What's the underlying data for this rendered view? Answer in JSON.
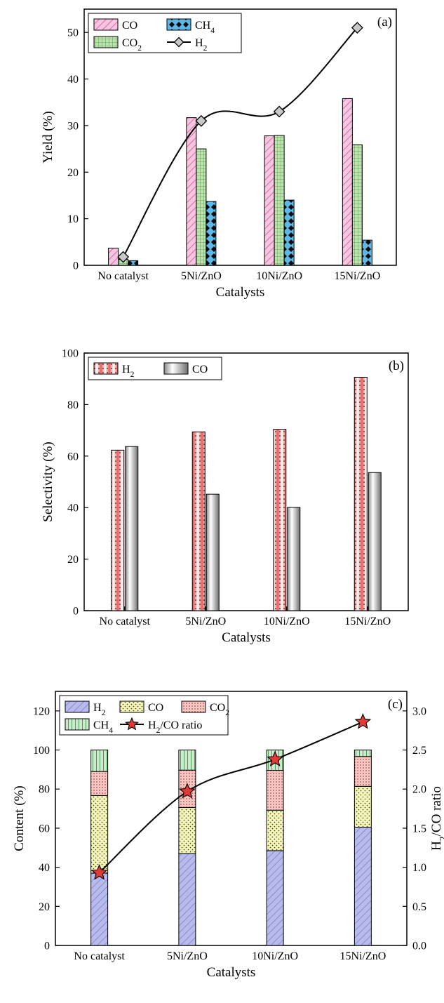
{
  "chart_data": [
    {
      "type": "bar",
      "panel_label": "(a)",
      "categories": [
        "No catalyst",
        "5Ni/ZnO",
        "10Ni/ZnO",
        "15Ni/ZnO"
      ],
      "xlabel": "Catalysts",
      "ylabel": "Yield (%)",
      "ylim": [
        0,
        55
      ],
      "yticks": [
        0,
        10,
        20,
        30,
        40,
        50
      ],
      "legend_position": "top-left",
      "series": [
        {
          "name": "CO",
          "sub": "",
          "values": [
            3.7,
            31.7,
            27.8,
            35.8
          ],
          "color": "#f2b8d8",
          "pattern": "hatch-pink"
        },
        {
          "name": "CO",
          "sub": "2",
          "values": [
            1.3,
            25.0,
            27.9,
            25.9
          ],
          "color": "#b7dfa9",
          "pattern": "grid-green"
        },
        {
          "name": "CH",
          "sub": "4",
          "values": [
            1.0,
            13.7,
            14.0,
            5.4
          ],
          "color": "#5fb7e6",
          "pattern": "diamond-blue"
        },
        {
          "name": "H",
          "sub": "2",
          "values": [
            1.8,
            31.0,
            33.0,
            51.0
          ],
          "kind": "line",
          "marker": "diamond",
          "color": "#c8c8c8"
        }
      ]
    },
    {
      "type": "bar",
      "panel_label": "(b)",
      "categories": [
        "No catalyst",
        "5Ni/ZnO",
        "10Ni/ZnO",
        "15Ni/ZnO"
      ],
      "xlabel": "Catalysts",
      "ylabel": "Selectivity (%)",
      "ylim": [
        0,
        100
      ],
      "yticks": [
        0,
        20,
        40,
        60,
        80,
        100
      ],
      "legend_position": "top-left",
      "series": [
        {
          "name": "H",
          "sub": "2",
          "values": [
            62.3,
            69.4,
            70.4,
            90.6
          ],
          "color": "#f4a0a0",
          "pattern": "red-dots"
        },
        {
          "name": "CO",
          "sub": "",
          "values": [
            63.7,
            45.2,
            40.1,
            53.6
          ],
          "color": "#bdbdbd",
          "pattern": "gray-gradient"
        }
      ]
    },
    {
      "type": "bar",
      "stacked": true,
      "panel_label": "(c)",
      "categories": [
        "No catalyst",
        "5Ni/ZnO",
        "10Ni/ZnO",
        "15Ni/ZnO"
      ],
      "xlabel": "Catalysts",
      "ylabel": "Content (%)",
      "ylabel_right": {
        "pre": "H",
        "sub": "2",
        "post": "/CO ratio"
      },
      "ylim": [
        0,
        130
      ],
      "yticks": [
        0,
        20,
        40,
        60,
        80,
        100,
        120
      ],
      "ylim_right": [
        0,
        3.25
      ],
      "yticks_right": [
        "0.0",
        "0.5",
        "1.0",
        "1.5",
        "2.0",
        "2.5",
        "3.0"
      ],
      "legend_position": "top-left",
      "series": [
        {
          "name": "H",
          "sub": "2",
          "values": [
            37.0,
            47.0,
            48.5,
            60.5
          ],
          "color": "#b3b6e6",
          "pattern": "hatch-blue"
        },
        {
          "name": "CO",
          "sub": "",
          "values": [
            39.7,
            23.6,
            20.7,
            20.9
          ],
          "color": "#f2f2b0",
          "pattern": "yellow-dots"
        },
        {
          "name": "CO",
          "sub": "2",
          "values": [
            12.3,
            19.1,
            20.4,
            15.3
          ],
          "color": "#f6c6c3",
          "pattern": "pink-dots"
        },
        {
          "name": "CH",
          "sub": "4",
          "values": [
            11.0,
            10.3,
            10.4,
            3.3
          ],
          "color": "#c8e6c9",
          "pattern": "vlines-green"
        },
        {
          "name": "H",
          "sub": "2",
          "post": "/CO ratio",
          "values": [
            0.93,
            1.97,
            2.38,
            2.86
          ],
          "kind": "line",
          "axis": "right",
          "marker": "star",
          "color": "#e53935"
        }
      ]
    }
  ]
}
